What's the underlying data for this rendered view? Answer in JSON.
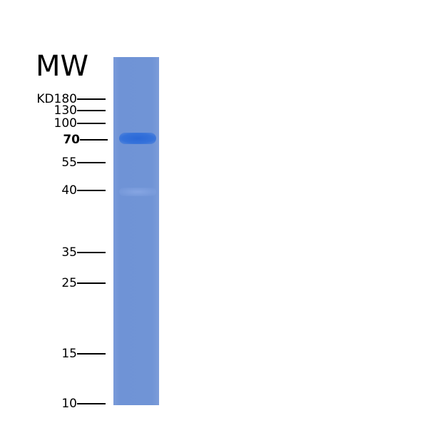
{
  "title": "MW",
  "unit_prefix": "KD",
  "markers": [
    {
      "label": "180",
      "kd": 180
    },
    {
      "label": "130",
      "kd": 130
    },
    {
      "label": "100",
      "kd": 100
    },
    {
      "label": "70",
      "kd": 70,
      "bold": true
    },
    {
      "label": "55",
      "kd": 55
    },
    {
      "label": "40",
      "kd": 40
    },
    {
      "label": "35",
      "kd": 35
    },
    {
      "label": "25",
      "kd": 25
    },
    {
      "label": "15",
      "kd": 15
    },
    {
      "label": "10",
      "kd": 10
    }
  ],
  "lane_color": "#7094d6",
  "band_color": "#2a68d8"
}
